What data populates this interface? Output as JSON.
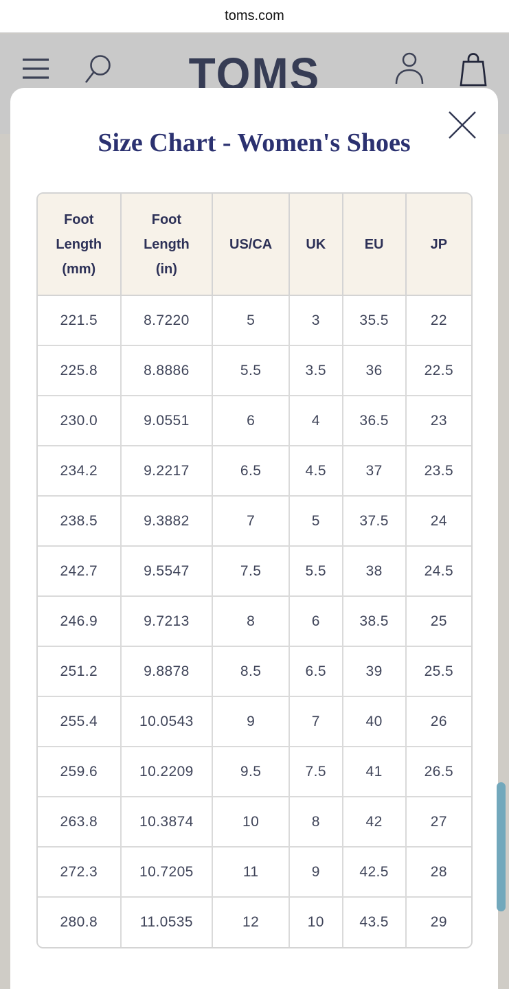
{
  "browser": {
    "title": "toms.com"
  },
  "header": {
    "logo": "TOMS"
  },
  "modal": {
    "title": "Size Chart - Women's Shoes"
  },
  "size_chart": {
    "columns": [
      "Foot\nLength\n(mm)",
      "Foot\nLength\n(in)",
      "US/CA",
      "UK",
      "EU",
      "JP"
    ],
    "rows": [
      [
        "221.5",
        "8.7220",
        "5",
        "3",
        "35.5",
        "22"
      ],
      [
        "225.8",
        "8.8886",
        "5.5",
        "3.5",
        "36",
        "22.5"
      ],
      [
        "230.0",
        "9.0551",
        "6",
        "4",
        "36.5",
        "23"
      ],
      [
        "234.2",
        "9.2217",
        "6.5",
        "4.5",
        "37",
        "23.5"
      ],
      [
        "238.5",
        "9.3882",
        "7",
        "5",
        "37.5",
        "24"
      ],
      [
        "242.7",
        "9.5547",
        "7.5",
        "5.5",
        "38",
        "24.5"
      ],
      [
        "246.9",
        "9.7213",
        "8",
        "6",
        "38.5",
        "25"
      ],
      [
        "251.2",
        "9.8878",
        "8.5",
        "6.5",
        "39",
        "25.5"
      ],
      [
        "255.4",
        "10.0543",
        "9",
        "7",
        "40",
        "26"
      ],
      [
        "259.6",
        "10.2209",
        "9.5",
        "7.5",
        "41",
        "26.5"
      ],
      [
        "263.8",
        "10.3874",
        "10",
        "8",
        "42",
        "27"
      ],
      [
        "272.3",
        "10.7205",
        "11",
        "9",
        "42.5",
        "28"
      ],
      [
        "280.8",
        "11.0535",
        "12",
        "10",
        "43.5",
        "29"
      ]
    ]
  },
  "icons": {
    "menu": "menu-icon",
    "search": "search-icon",
    "account": "account-icon",
    "bag": "bag-icon",
    "close": "close-icon"
  },
  "colors": {
    "title_navy": "#2b3170",
    "icon_navy": "#363c54",
    "table_header_bg": "#f7f2e9",
    "table_text": "#3f4459",
    "scrollbar_teal": "#72a8bc"
  }
}
